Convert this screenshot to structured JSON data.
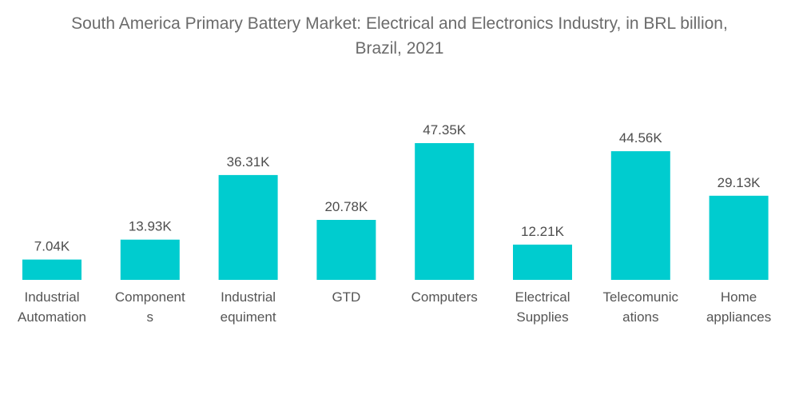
{
  "chart_data": {
    "type": "bar",
    "title": "South America Primary Battery Market: Electrical and Electronics Industry, in BRL billion, Brazil, 2021",
    "title_lines": [
      "South America Primary Battery Market: Electrical and Electronics Industry, in BRL billion,",
      "Brazil, 2021"
    ],
    "categories": [
      "Industrial Automation",
      "Components",
      "Industrial equiment",
      "GTD",
      "Computers",
      "Electrical Supplies",
      "Telecomunications",
      "Home appliances"
    ],
    "category_label_lines": [
      [
        "Industrial",
        "Automation"
      ],
      [
        "Component",
        "s"
      ],
      [
        "Industrial",
        "equiment"
      ],
      [
        "GTD"
      ],
      [
        "Computers"
      ],
      [
        "Electrical",
        "Supplies"
      ],
      [
        "Telecomunic",
        "ations"
      ],
      [
        "Home",
        "appliances"
      ]
    ],
    "values": [
      7.04,
      13.93,
      36.31,
      20.78,
      47.35,
      12.21,
      44.56,
      29.13
    ],
    "value_unit": "K",
    "data_labels": [
      "7.04K",
      "13.93K",
      "36.31K",
      "20.78K",
      "47.35K",
      "12.21K",
      "44.56K",
      "29.13K"
    ],
    "xlabel": "",
    "ylabel": "",
    "ylim": [
      0,
      50
    ],
    "grid": false,
    "legend": "none",
    "bar_color": "#00CCCF"
  }
}
